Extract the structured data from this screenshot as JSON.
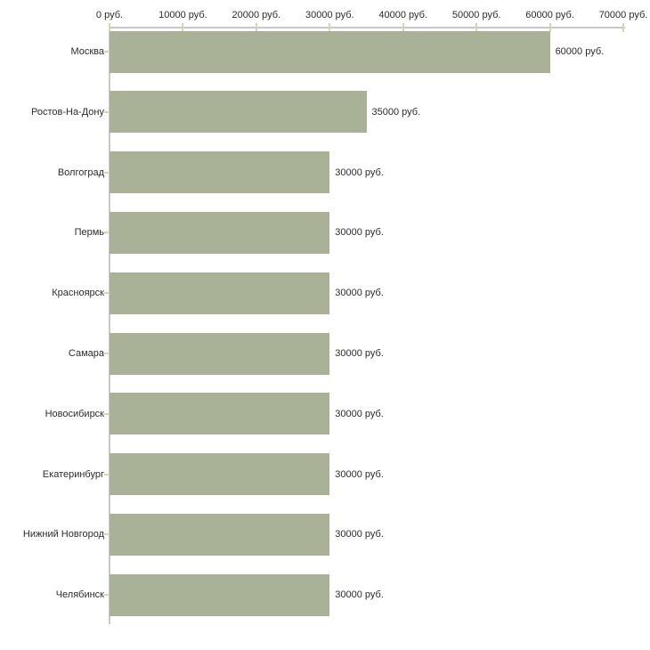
{
  "chart_data": {
    "type": "bar",
    "orientation": "horizontal",
    "title": "",
    "xlabel": "",
    "ylabel": "",
    "categories": [
      "Москва",
      "Ростов-На-Дону",
      "Волгоград",
      "Пермь",
      "Красноярск",
      "Самара",
      "Новосибирск",
      "Екатеринбург",
      "Нижний Новгород",
      "Челябинск"
    ],
    "values": [
      60000,
      35000,
      30000,
      30000,
      30000,
      30000,
      30000,
      30000,
      30000,
      30000
    ],
    "value_labels": [
      "60000 руб.",
      "35000 руб.",
      "30000 руб.",
      "30000 руб.",
      "30000 руб.",
      "30000 руб.",
      "30000 руб.",
      "30000 руб.",
      "30000 руб.",
      "30000 руб."
    ],
    "x_tick_values": [
      0,
      10000,
      20000,
      30000,
      40000,
      50000,
      60000,
      70000
    ],
    "x_tick_labels": [
      "0 руб.",
      "10000 руб.",
      "20000 руб.",
      "30000 руб.",
      "40000 руб.",
      "50000 руб.",
      "60000 руб.",
      "70000 руб."
    ],
    "xlim": [
      0,
      70000
    ],
    "grid": false,
    "legend": false,
    "axis_position": "top-left",
    "colors": {
      "bar": "#a9b197",
      "axis_line": "#c8c8c8",
      "tick_mark": "#d8d4ae",
      "text": "#2b2b2b",
      "background": "#ffffff"
    }
  }
}
